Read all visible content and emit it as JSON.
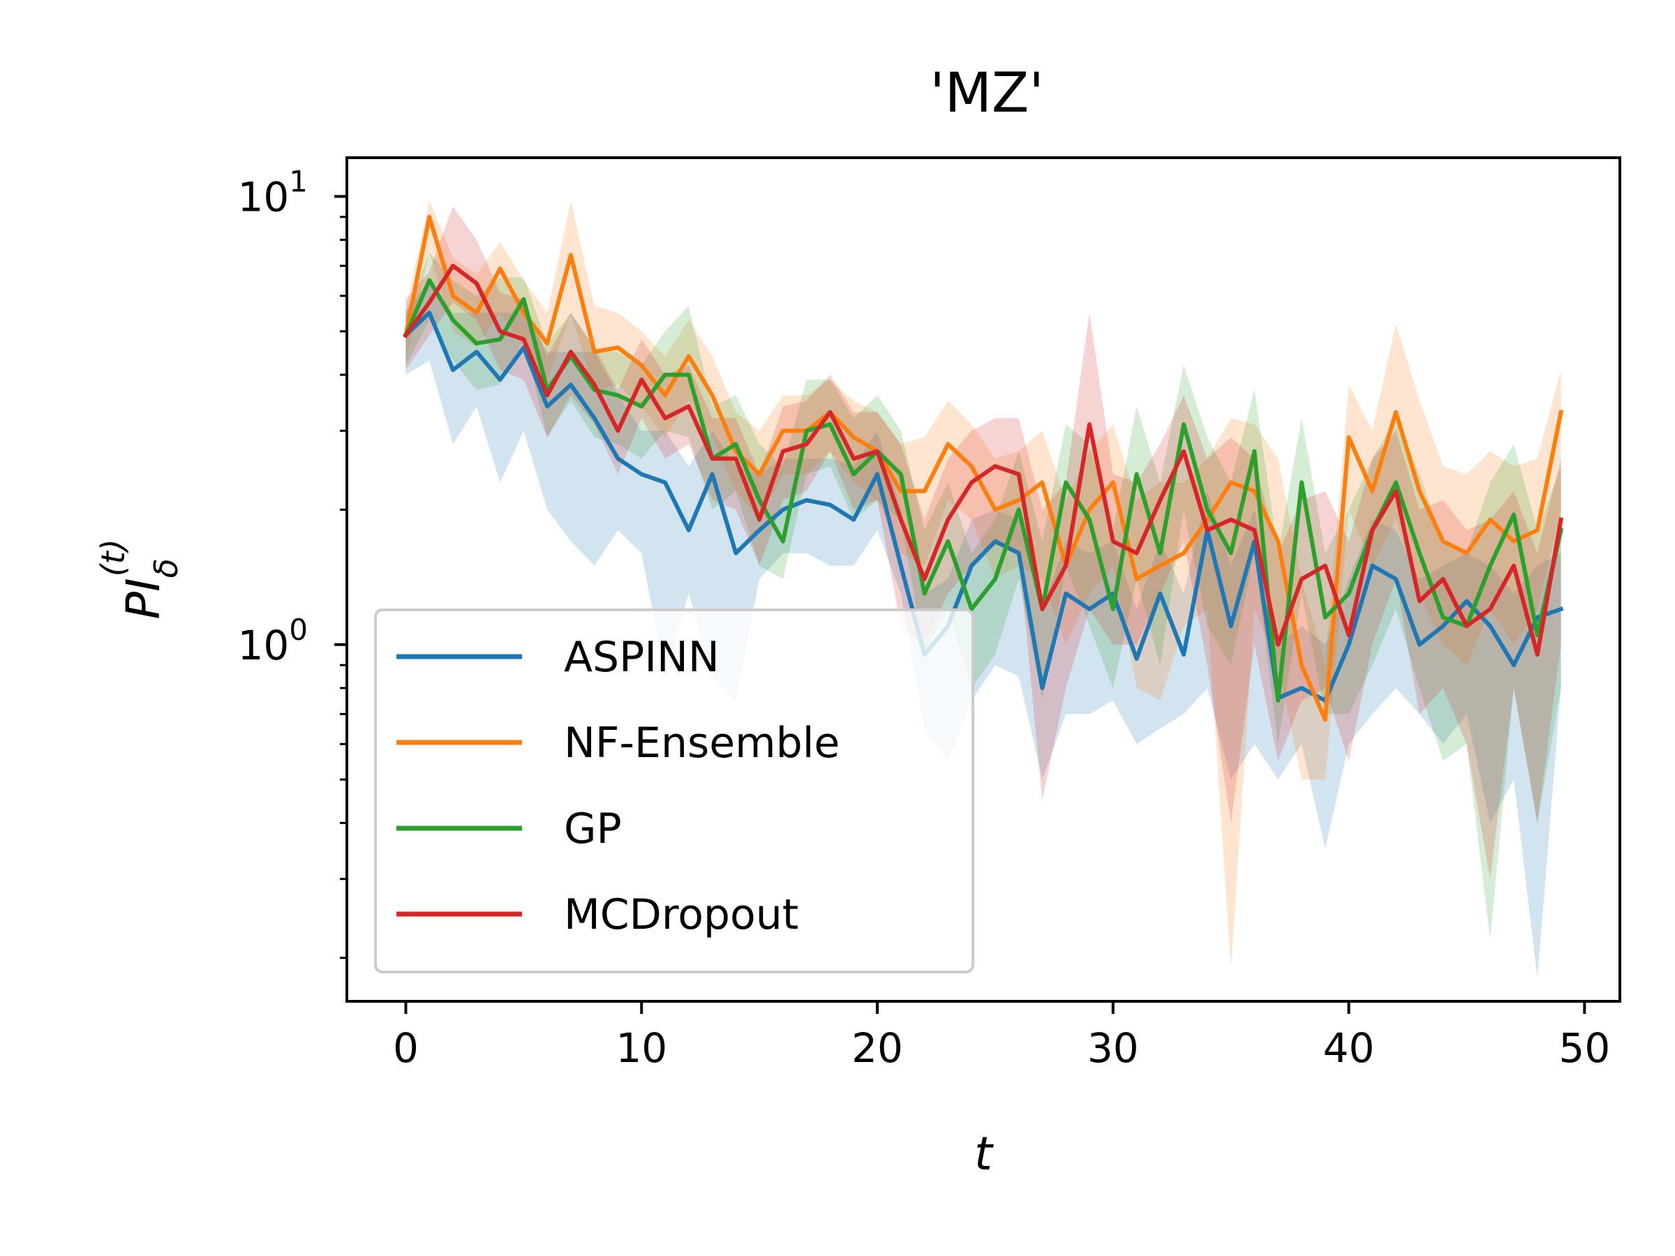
{
  "chart_data": {
    "type": "line",
    "title": "'MZ'",
    "xlabel": "t",
    "ylabel": "PI_δ^(t)",
    "yscale": "log",
    "xlim": [
      -2.5,
      51.5
    ],
    "ylim": [
      0.16,
      12.2
    ],
    "xticks": [
      0,
      10,
      20,
      30,
      40,
      50
    ],
    "yticks": [
      {
        "value": 1,
        "base": "10",
        "exp": "0"
      },
      {
        "value": 10,
        "base": "10",
        "exp": "1"
      }
    ],
    "legend_position": "lower-left",
    "x": [
      0,
      1,
      2,
      3,
      4,
      5,
      6,
      7,
      8,
      9,
      10,
      11,
      12,
      13,
      14,
      15,
      16,
      17,
      18,
      19,
      20,
      21,
      22,
      23,
      24,
      25,
      26,
      27,
      28,
      29,
      30,
      31,
      32,
      33,
      34,
      35,
      36,
      37,
      38,
      39,
      40,
      41,
      42,
      43,
      44,
      45,
      46,
      47,
      48,
      49
    ],
    "series": [
      {
        "name": "ASPINN",
        "color": "#1f77b4",
        "values": [
          4.9,
          5.5,
          4.1,
          4.5,
          3.9,
          4.6,
          3.4,
          3.8,
          3.2,
          2.6,
          2.4,
          2.3,
          1.8,
          2.4,
          1.6,
          1.8,
          2.0,
          2.1,
          2.05,
          1.9,
          2.4,
          1.5,
          0.95,
          1.1,
          1.5,
          1.7,
          1.6,
          0.8,
          1.3,
          1.2,
          1.3,
          0.93,
          1.3,
          0.95,
          1.8,
          1.1,
          1.7,
          0.76,
          0.8,
          0.75,
          1.0,
          1.5,
          1.4,
          1.0,
          1.1,
          1.25,
          1.1,
          0.9,
          1.15,
          1.2
        ],
        "lower": [
          4.0,
          4.3,
          2.8,
          3.4,
          2.3,
          3.0,
          2.0,
          1.7,
          1.5,
          1.8,
          1.6,
          0.85,
          1.3,
          0.85,
          0.75,
          1.4,
          1.6,
          1.6,
          1.5,
          1.5,
          1.8,
          1.3,
          0.65,
          0.55,
          0.75,
          0.9,
          0.85,
          0.5,
          0.7,
          0.7,
          0.75,
          0.6,
          0.65,
          0.7,
          0.8,
          0.5,
          0.6,
          0.5,
          0.6,
          0.35,
          0.6,
          0.7,
          0.8,
          0.7,
          0.6,
          0.7,
          0.4,
          0.5,
          0.18,
          0.8
        ],
        "upper": [
          5.5,
          6.5,
          5.5,
          5.5,
          5.5,
          5.5,
          4.5,
          4.5,
          4.5,
          3.6,
          3.0,
          3.0,
          2.5,
          3.0,
          2.5,
          2.4,
          2.6,
          2.6,
          2.6,
          2.5,
          3.0,
          2.0,
          1.3,
          1.4,
          1.9,
          2.0,
          1.9,
          1.2,
          1.7,
          1.6,
          1.7,
          1.2,
          1.7,
          1.3,
          2.2,
          1.5,
          2.0,
          1.0,
          1.1,
          1.0,
          1.4,
          1.9,
          1.8,
          1.4,
          1.5,
          1.6,
          1.5,
          1.3,
          1.5,
          1.6
        ]
      },
      {
        "name": "NF-Ensemble",
        "color": "#ff7f0e",
        "values": [
          4.9,
          9.0,
          6.0,
          5.5,
          6.9,
          5.5,
          4.7,
          7.4,
          4.5,
          4.6,
          4.2,
          3.6,
          4.4,
          3.6,
          2.7,
          2.4,
          3.0,
          3.0,
          3.3,
          2.9,
          2.7,
          2.2,
          2.2,
          2.8,
          2.5,
          2.0,
          2.1,
          2.3,
          1.5,
          2.0,
          2.3,
          1.4,
          1.5,
          1.6,
          1.9,
          2.3,
          2.2,
          1.7,
          0.9,
          0.68,
          2.9,
          2.2,
          3.3,
          2.2,
          1.7,
          1.6,
          1.9,
          1.7,
          1.8,
          3.3
        ],
        "lower": [
          4.3,
          7.5,
          5.0,
          4.6,
          5.5,
          4.6,
          3.9,
          5.5,
          3.7,
          3.8,
          3.4,
          2.9,
          3.5,
          2.9,
          2.2,
          1.9,
          2.4,
          2.4,
          2.7,
          2.3,
          2.1,
          1.6,
          1.5,
          2.1,
          1.9,
          1.4,
          1.5,
          1.4,
          1.0,
          1.3,
          1.5,
          0.8,
          0.75,
          1.1,
          1.2,
          0.19,
          1.2,
          0.9,
          0.5,
          0.5,
          2.0,
          1.5,
          1.9,
          1.3,
          1.0,
          0.9,
          1.2,
          1.0,
          1.2,
          2.0
        ],
        "upper": [
          5.6,
          9.8,
          7.3,
          6.7,
          7.9,
          6.5,
          5.5,
          9.8,
          5.7,
          5.5,
          5.0,
          4.4,
          5.3,
          4.4,
          3.3,
          3.0,
          3.6,
          3.6,
          3.9,
          3.5,
          3.3,
          2.8,
          2.9,
          3.5,
          3.1,
          2.6,
          2.7,
          3.0,
          2.1,
          2.7,
          3.1,
          2.1,
          2.3,
          2.3,
          2.6,
          3.2,
          3.1,
          2.6,
          1.4,
          0.9,
          3.8,
          3.0,
          5.2,
          3.5,
          2.5,
          2.4,
          2.7,
          2.5,
          2.6,
          4.1
        ]
      },
      {
        "name": "GP",
        "color": "#2ca02c",
        "values": [
          4.9,
          6.5,
          5.3,
          4.7,
          4.8,
          5.9,
          3.7,
          4.4,
          3.7,
          3.6,
          3.4,
          4.0,
          4.0,
          2.6,
          2.8,
          2.1,
          1.7,
          3.0,
          3.1,
          2.4,
          2.7,
          2.4,
          1.3,
          1.7,
          1.2,
          1.4,
          2.0,
          1.2,
          2.3,
          1.9,
          1.2,
          2.4,
          1.6,
          3.1,
          2.0,
          1.6,
          2.7,
          0.75,
          2.3,
          1.15,
          1.3,
          1.8,
          2.3,
          1.6,
          1.15,
          1.1,
          1.5,
          1.95,
          1.05,
          1.8
        ],
        "lower": [
          4.2,
          5.3,
          4.3,
          3.7,
          3.8,
          4.8,
          2.9,
          3.5,
          2.9,
          2.8,
          2.6,
          3.0,
          2.9,
          2.0,
          2.2,
          1.5,
          1.4,
          2.4,
          2.5,
          1.9,
          2.1,
          1.9,
          0.95,
          1.2,
          0.8,
          0.95,
          1.4,
          0.75,
          1.5,
          1.1,
          0.8,
          1.4,
          0.9,
          2.0,
          1.1,
          0.9,
          1.6,
          0.6,
          1.3,
          0.7,
          0.7,
          0.9,
          1.2,
          0.8,
          0.55,
          0.6,
          0.22,
          0.8,
          0.4,
          0.8
        ],
        "upper": [
          5.5,
          7.5,
          6.5,
          6.0,
          6.6,
          6.6,
          4.7,
          5.5,
          4.6,
          4.5,
          4.2,
          5.0,
          5.7,
          3.4,
          3.6,
          2.8,
          2.5,
          3.9,
          3.9,
          3.2,
          3.6,
          3.0,
          1.8,
          2.3,
          1.6,
          1.9,
          2.7,
          1.7,
          3.1,
          2.8,
          1.8,
          3.4,
          2.3,
          4.2,
          2.9,
          2.3,
          3.7,
          1.6,
          3.2,
          1.6,
          2.0,
          2.6,
          3.2,
          2.4,
          1.7,
          1.6,
          2.3,
          2.8,
          1.8,
          2.5
        ]
      },
      {
        "name": "MCDropout",
        "color": "#d62728",
        "values": [
          4.9,
          5.8,
          7.0,
          6.4,
          5.0,
          4.8,
          3.6,
          4.5,
          3.8,
          3.0,
          3.9,
          3.2,
          3.4,
          2.6,
          2.6,
          1.9,
          2.7,
          2.8,
          3.3,
          2.6,
          2.7,
          1.9,
          1.4,
          1.9,
          2.3,
          2.5,
          2.4,
          1.2,
          1.5,
          3.1,
          1.7,
          1.6,
          2.1,
          2.7,
          1.8,
          1.9,
          1.8,
          1.0,
          1.4,
          1.5,
          1.05,
          1.8,
          2.2,
          1.25,
          1.4,
          1.1,
          1.2,
          1.5,
          0.95,
          1.9
        ],
        "lower": [
          4.1,
          4.9,
          5.8,
          5.3,
          4.1,
          3.9,
          2.9,
          3.6,
          3.1,
          2.4,
          3.2,
          2.6,
          2.8,
          2.1,
          2.0,
          1.5,
          2.1,
          2.2,
          2.7,
          2.0,
          2.1,
          1.1,
          1.0,
          1.3,
          1.5,
          1.7,
          1.6,
          0.45,
          0.8,
          1.2,
          1.0,
          1.0,
          1.3,
          1.7,
          0.9,
          0.4,
          1.0,
          0.55,
          0.75,
          0.8,
          0.55,
          1.0,
          1.4,
          0.7,
          0.8,
          0.6,
          0.3,
          0.8,
          0.4,
          1.0
        ],
        "upper": [
          5.9,
          6.8,
          9.5,
          8.0,
          6.1,
          5.9,
          4.4,
          5.5,
          4.6,
          3.7,
          4.8,
          4.0,
          4.2,
          3.2,
          3.2,
          2.4,
          3.4,
          3.5,
          4.0,
          3.3,
          3.3,
          2.8,
          1.9,
          2.6,
          3.0,
          3.2,
          3.2,
          2.0,
          2.3,
          5.5,
          2.4,
          2.3,
          2.8,
          3.6,
          2.6,
          2.9,
          2.6,
          1.6,
          2.1,
          2.2,
          1.7,
          2.6,
          3.0,
          2.0,
          2.1,
          1.8,
          1.9,
          2.2,
          1.6,
          2.6
        ]
      }
    ]
  }
}
